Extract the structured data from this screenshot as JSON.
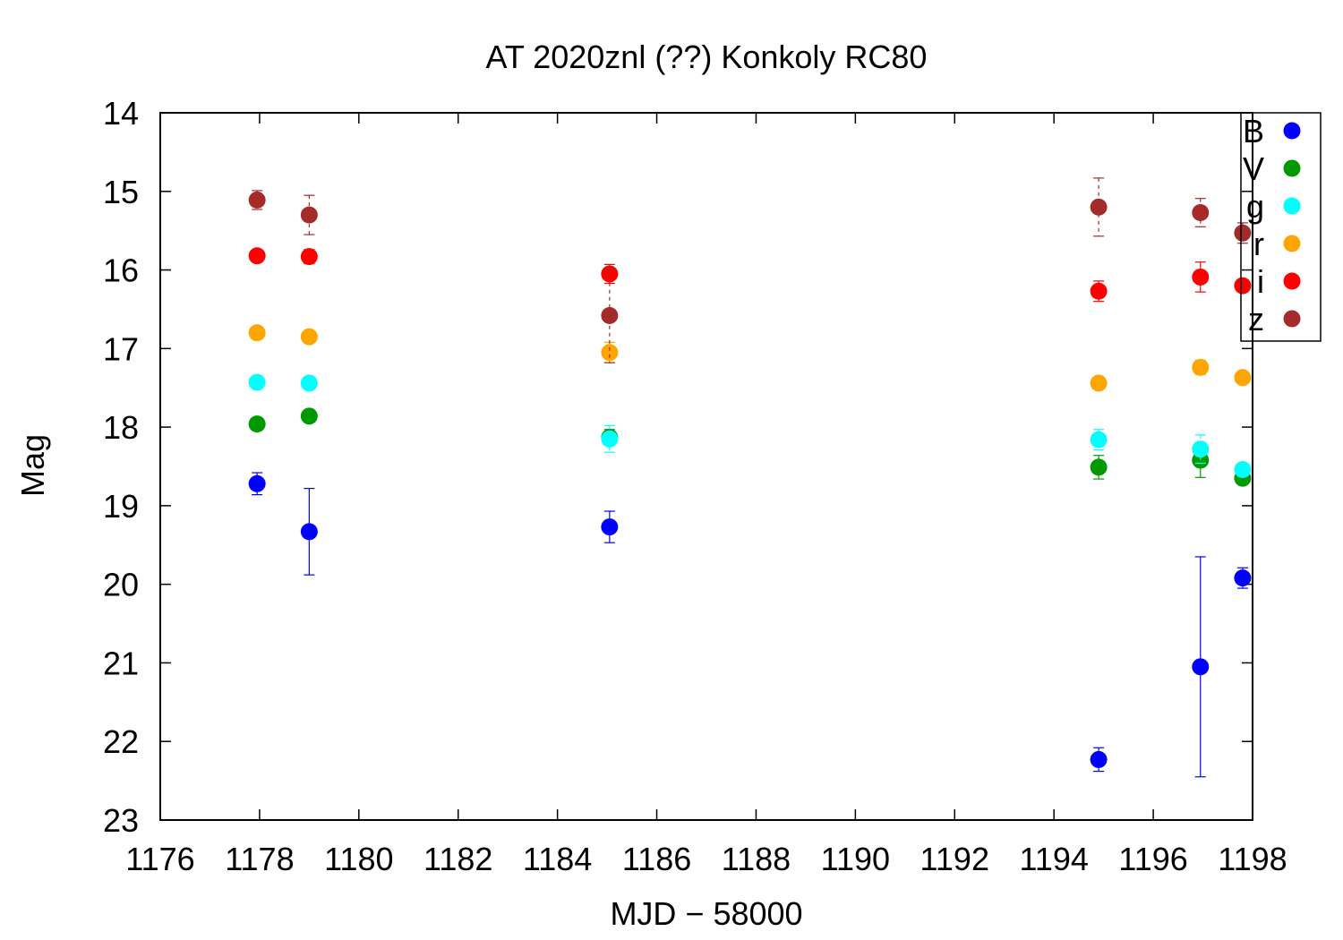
{
  "chart_data": {
    "type": "scatter",
    "title": "AT 2020znl (??) Konkoly RC80",
    "xlabel": "MJD − 58000",
    "ylabel": "Mag",
    "xlim": [
      1176,
      1198
    ],
    "ylim": [
      23,
      14
    ],
    "y_inverted": true,
    "x_ticks": [
      1176,
      1178,
      1180,
      1182,
      1184,
      1186,
      1188,
      1190,
      1192,
      1194,
      1196,
      1198
    ],
    "y_ticks": [
      14,
      15,
      16,
      17,
      18,
      19,
      20,
      21,
      22,
      23
    ],
    "grid": false,
    "legend_position": "top-right",
    "series": [
      {
        "name": "B",
        "color": "#0000ff",
        "x": [
          1177.95,
          1179.0,
          1185.05,
          1194.9,
          1196.95,
          1197.8
        ],
        "y": [
          18.72,
          19.33,
          19.27,
          22.23,
          21.05,
          19.92
        ],
        "err": [
          0.14,
          0.55,
          0.2,
          0.15,
          1.4,
          0.13
        ]
      },
      {
        "name": "V",
        "color": "#009900",
        "x": [
          1177.95,
          1179.0,
          1185.05,
          1194.9,
          1196.95,
          1197.8
        ],
        "y": [
          17.96,
          17.86,
          18.13,
          18.51,
          18.42,
          18.65
        ],
        "err": [
          0.05,
          0.06,
          0.1,
          0.15,
          0.22,
          0.06
        ]
      },
      {
        "name": "g",
        "color": "#00ffff",
        "x": [
          1177.95,
          1179.0,
          1185.05,
          1194.9,
          1196.95,
          1197.8
        ],
        "y": [
          17.43,
          17.44,
          18.15,
          18.16,
          18.28,
          18.54
        ],
        "err": [
          0.04,
          0.04,
          0.17,
          0.13,
          0.18,
          0.05
        ]
      },
      {
        "name": "r",
        "color": "#ffa500",
        "x": [
          1177.95,
          1179.0,
          1185.05,
          1194.9,
          1196.95,
          1197.8
        ],
        "y": [
          16.8,
          16.85,
          17.05,
          17.44,
          17.24,
          17.37
        ],
        "err": [
          0.04,
          0.04,
          0.13,
          0.05,
          0.09,
          0.05
        ]
      },
      {
        "name": "i",
        "color": "#ff0000",
        "x": [
          1177.95,
          1179.0,
          1185.05,
          1194.9,
          1196.95,
          1197.8
        ],
        "y": [
          15.82,
          15.83,
          16.05,
          16.27,
          16.09,
          16.2
        ],
        "err": [
          0.06,
          0.09,
          0.12,
          0.13,
          0.19,
          0.05
        ]
      },
      {
        "name": "z",
        "color": "#a52a2a",
        "x": [
          1177.95,
          1179.0,
          1185.05,
          1194.9,
          1196.95,
          1197.8
        ],
        "y": [
          15.11,
          15.3,
          16.58,
          15.2,
          15.27,
          15.53
        ],
        "err": [
          0.12,
          0.25,
          0.6,
          0.37,
          0.18,
          0.13
        ]
      }
    ]
  }
}
